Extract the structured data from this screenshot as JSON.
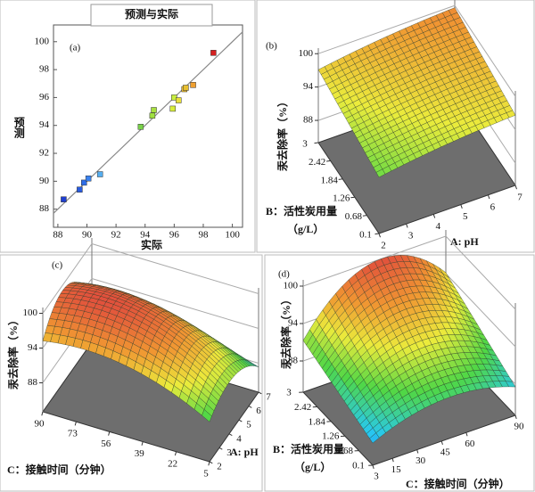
{
  "chart_data": [
    {
      "type": "scatter",
      "title": "预测与实际",
      "annotation": "(a)",
      "xlabel": "实际",
      "ylabel": "预测",
      "x": [
        88.4,
        89.5,
        89.8,
        90.1,
        90.9,
        93.7,
        94.5,
        94.6,
        95.9,
        96.0,
        96.3,
        96.7,
        96.8,
        97.3,
        98.7
      ],
      "values": [
        88.7,
        89.4,
        89.9,
        90.2,
        90.5,
        93.9,
        94.7,
        95.1,
        95.2,
        96.0,
        95.8,
        96.6,
        96.7,
        96.9,
        99.2
      ],
      "point_colors": [
        "#1f3fd0",
        "#2a5de0",
        "#2f6ee8",
        "#3a82f0",
        "#55aef0",
        "#79d24a",
        "#a0e040",
        "#a8e040",
        "#d8ee3a",
        "#c8ee40",
        "#e8e03a",
        "#f0c030",
        "#e8c030",
        "#f0a030",
        "#d42020"
      ],
      "xlim": [
        87.7,
        100.7
      ],
      "ylim": [
        86.7,
        101.2
      ],
      "xticks": [
        88,
        90,
        92,
        94,
        96,
        98,
        100
      ],
      "yticks": [
        88,
        90,
        92,
        94,
        96,
        98,
        100
      ]
    },
    {
      "type": "surface3d",
      "annotation": "(b)",
      "zlabel": "汞去除率（%）",
      "xlabel": "A: pH",
      "ylabel": [
        "B：活性炭用量",
        "（g/L）"
      ],
      "xticks": [
        2,
        3,
        4,
        5,
        6,
        7
      ],
      "yticks": [
        0.1,
        0.68,
        1.26,
        1.84,
        2.42,
        3
      ],
      "zticks": [
        88,
        94,
        100
      ],
      "zlim": [
        84,
        101
      ]
    },
    {
      "type": "surface3d",
      "annotation": "(c)",
      "zlabel": "汞去除率（%）",
      "xlabel": "A: pH",
      "ylabel": "C：接触时间（分钟）",
      "xticks": [
        2,
        3,
        4,
        5,
        6,
        7
      ],
      "yticks": [
        5,
        22,
        39,
        56,
        73,
        90
      ],
      "zticks": [
        88,
        94,
        100
      ],
      "zlim": [
        83,
        101
      ]
    },
    {
      "type": "surface3d",
      "annotation": "(d)",
      "zlabel": "汞去除率（%）",
      "xlabel": "C：接触时间（分钟）",
      "ylabel": [
        "B：活性炭用量",
        "（g/L）"
      ],
      "xticks": [
        3,
        15,
        30,
        45,
        60,
        90
      ],
      "yticks": [
        0.1,
        0.68,
        1.26,
        1.84,
        2.42,
        3
      ],
      "zticks": [
        88,
        94,
        100
      ],
      "zlim": [
        83,
        101
      ]
    }
  ]
}
